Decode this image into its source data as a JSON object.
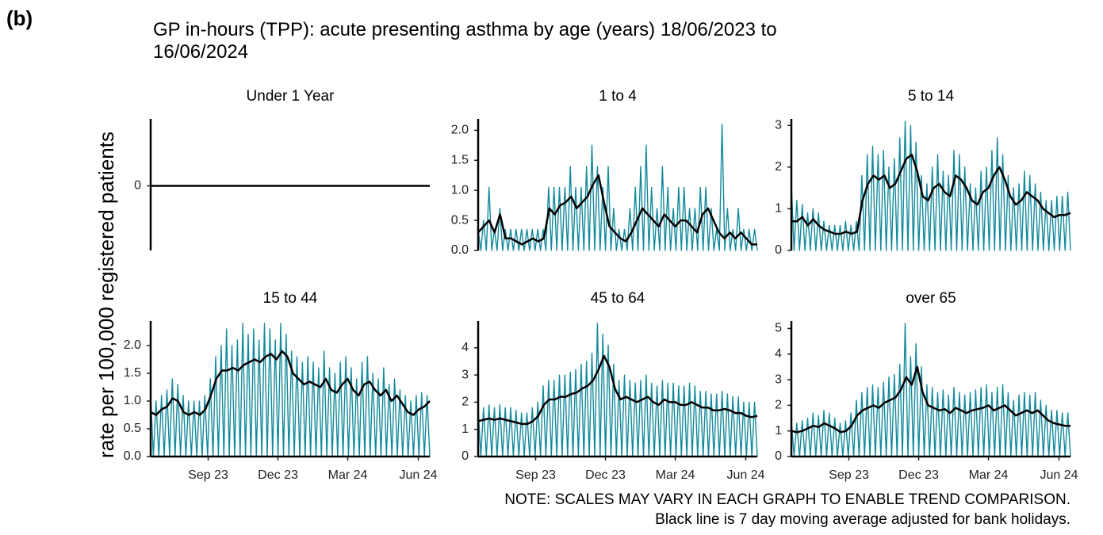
{
  "figure": {
    "label": "(b)",
    "title": "GP in-hours (TPP): acute presenting asthma by age (years) 18/06/2023 to 16/06/2024",
    "ylabel": "rate per 100,000 registered patients",
    "notes": [
      "NOTE: SCALES MAY VARY IN EACH GRAPH TO ENABLE TREND COMPARISON.",
      "Black line is 7 day moving average adjusted for bank holidays."
    ]
  },
  "chart_data": [
    {
      "type": "line",
      "title": "Under 1 Year",
      "xlim": [
        "2023-06-18",
        "2024-06-16"
      ],
      "ylim": [
        -1,
        1
      ],
      "yticks": [
        0
      ],
      "series": [
        {
          "color": "#000000",
          "values": [
            0,
            0
          ]
        }
      ]
    },
    {
      "type": "line",
      "title": "1 to 4",
      "xlim": [
        "2023-06-18",
        "2024-06-16"
      ],
      "ylim": [
        0,
        2.15
      ],
      "yticks": [
        {
          "value": 0,
          "label": "0.0"
        },
        {
          "value": 0.5,
          "label": "0.5"
        },
        {
          "value": 1,
          "label": "1.0"
        },
        {
          "value": 1.5,
          "label": "1.5"
        },
        {
          "value": 2,
          "label": "2.0"
        }
      ],
      "series": [
        {
          "color": "#13899c",
          "values": [
            0.35,
            0,
            0.5,
            0,
            1.05,
            0,
            0.35,
            0,
            0.7,
            0,
            0.35,
            0,
            0.35,
            0,
            0.35,
            0,
            0.35,
            0,
            0.35,
            0,
            0.35,
            0,
            0.35,
            0,
            0.35,
            0,
            1.05,
            0,
            1.05,
            0,
            1.05,
            0,
            1.05,
            0,
            1.4,
            0,
            1.05,
            0,
            1.05,
            0,
            1.4,
            0,
            1.75,
            0,
            1.4,
            0,
            1.05,
            0,
            1.4,
            0,
            0.7,
            0,
            0.35,
            0,
            0.35,
            0,
            0.7,
            0,
            1.05,
            0,
            1.4,
            0,
            1.75,
            0,
            1.05,
            0,
            0.7,
            0,
            1.4,
            0,
            1.05,
            0,
            0.7,
            0,
            1.05,
            0,
            1.05,
            0,
            0.7,
            0,
            0.7,
            0,
            1.05,
            0,
            1.05,
            0,
            0.7,
            0,
            0.35,
            0,
            2.1,
            0,
            0.7,
            0,
            0.35,
            0,
            0.7,
            0,
            0.35,
            0,
            0.35,
            0,
            0.35,
            0
          ]
        },
        {
          "color": "#000000",
          "values": [
            0.3,
            0.4,
            0.5,
            0.3,
            0.6,
            0.2,
            0.2,
            0.15,
            0.1,
            0.15,
            0.2,
            0.15,
            0.2,
            0.7,
            0.6,
            0.75,
            0.8,
            0.9,
            0.7,
            0.8,
            0.9,
            1.1,
            1.25,
            0.8,
            0.4,
            0.3,
            0.2,
            0.15,
            0.3,
            0.5,
            0.7,
            0.6,
            0.5,
            0.4,
            0.6,
            0.5,
            0.4,
            0.5,
            0.5,
            0.4,
            0.3,
            0.6,
            0.7,
            0.5,
            0.3,
            0.2,
            0.3,
            0.2,
            0.3,
            0.2,
            0.1,
            0.1
          ]
        }
      ]
    },
    {
      "type": "line",
      "title": "5 to 14",
      "xlim": [
        "2023-06-18",
        "2024-06-16"
      ],
      "ylim": [
        0,
        3.1
      ],
      "yticks": [
        0,
        1,
        2,
        3
      ],
      "series": [
        {
          "color": "#13899c",
          "values": [
            1.6,
            0,
            1.2,
            0,
            1.1,
            0,
            0.9,
            0,
            1.0,
            0,
            0.9,
            0,
            0.7,
            0,
            0.6,
            0,
            0.6,
            0,
            0.6,
            0,
            0.7,
            0,
            0.6,
            0,
            0.7,
            0,
            1.8,
            0,
            2.3,
            0,
            2.5,
            0,
            2.3,
            0,
            2.4,
            0,
            2.0,
            0,
            2.2,
            0,
            2.7,
            0,
            3.1,
            0,
            3.0,
            0,
            2.6,
            0,
            1.8,
            0,
            1.6,
            0,
            2.0,
            0,
            2.3,
            0,
            1.9,
            0,
            1.8,
            0,
            2.4,
            0,
            2.3,
            0,
            2.0,
            0,
            1.6,
            0,
            1.5,
            0,
            1.9,
            0,
            2.0,
            0,
            2.4,
            0,
            2.7,
            0,
            2.3,
            0,
            1.8,
            0,
            1.5,
            0,
            1.6,
            0,
            1.9,
            0,
            1.8,
            0,
            1.6,
            0,
            1.4,
            0,
            1.2,
            0,
            1.2,
            0,
            1.3,
            0,
            1.3,
            0,
            1.4,
            0
          ]
        },
        {
          "color": "#000000",
          "values": [
            0.7,
            0.7,
            0.8,
            0.6,
            0.75,
            0.6,
            0.5,
            0.45,
            0.4,
            0.4,
            0.45,
            0.4,
            0.45,
            1.2,
            1.6,
            1.8,
            1.7,
            1.8,
            1.5,
            1.6,
            1.9,
            2.2,
            2.3,
            1.9,
            1.3,
            1.2,
            1.5,
            1.6,
            1.4,
            1.3,
            1.8,
            1.7,
            1.5,
            1.2,
            1.1,
            1.4,
            1.5,
            1.8,
            2.0,
            1.7,
            1.3,
            1.1,
            1.2,
            1.4,
            1.3,
            1.2,
            1.0,
            0.9,
            0.8,
            0.85,
            0.85,
            0.9
          ]
        }
      ]
    },
    {
      "type": "line",
      "title": "15 to 44",
      "xlim": [
        "2023-06-18",
        "2024-06-16"
      ],
      "ylim": [
        0,
        2.4
      ],
      "yticks": [
        {
          "value": 0,
          "label": "0.0"
        },
        {
          "value": 0.5,
          "label": "0.5"
        },
        {
          "value": 1,
          "label": "1.0"
        },
        {
          "value": 1.5,
          "label": "1.5"
        },
        {
          "value": 2,
          "label": "2.0"
        }
      ],
      "xticks": [
        {
          "value": "2023-09",
          "label": "Sep 23"
        },
        {
          "value": "2023-12",
          "label": "Dec 23"
        },
        {
          "value": "2024-03",
          "label": "Mar 24"
        },
        {
          "value": "2024-06",
          "label": "Jun 24"
        }
      ],
      "series": [
        {
          "color": "#13899c",
          "values": [
            1.1,
            0,
            1.0,
            0,
            1.1,
            0,
            1.2,
            0,
            1.4,
            0,
            1.3,
            0,
            1.1,
            0,
            1.0,
            0,
            1.0,
            0,
            1.0,
            0,
            1.1,
            0,
            1.4,
            0,
            1.8,
            0,
            2.0,
            0,
            2.3,
            0,
            2.0,
            0,
            2.1,
            0,
            2.4,
            0,
            2.2,
            0,
            2.3,
            0,
            2.1,
            0,
            2.4,
            0,
            2.3,
            0,
            2.1,
            0,
            2.4,
            0,
            2.2,
            0,
            1.9,
            0,
            1.8,
            0,
            1.7,
            0,
            1.8,
            0,
            1.7,
            0,
            1.6,
            0,
            1.9,
            0,
            1.6,
            0,
            1.5,
            0,
            1.7,
            0,
            1.8,
            0,
            1.6,
            0,
            1.4,
            0,
            1.7,
            0,
            1.8,
            0,
            1.5,
            0,
            1.4,
            0,
            1.6,
            0,
            1.3,
            0,
            1.4,
            0,
            1.2,
            0,
            1.1,
            0,
            1.0,
            0,
            1.1,
            0,
            1.15,
            0,
            1.1,
            0
          ]
        },
        {
          "color": "#000000",
          "values": [
            0.8,
            0.75,
            0.85,
            0.9,
            1.05,
            1.0,
            0.8,
            0.75,
            0.8,
            0.75,
            0.85,
            1.1,
            1.4,
            1.55,
            1.55,
            1.6,
            1.55,
            1.65,
            1.7,
            1.75,
            1.7,
            1.8,
            1.85,
            1.75,
            1.9,
            1.8,
            1.5,
            1.4,
            1.3,
            1.35,
            1.3,
            1.25,
            1.4,
            1.2,
            1.15,
            1.3,
            1.4,
            1.2,
            1.1,
            1.3,
            1.35,
            1.2,
            1.1,
            1.2,
            1.0,
            1.1,
            0.95,
            0.8,
            0.75,
            0.85,
            0.9,
            1.0
          ]
        }
      ]
    },
    {
      "type": "line",
      "title": "45 to 64",
      "xlim": [
        "2023-06-18",
        "2024-06-16"
      ],
      "ylim": [
        0,
        4.9
      ],
      "yticks": [
        0,
        1,
        2,
        3,
        4
      ],
      "xticks": [
        {
          "value": "2023-09",
          "label": "Sep 23"
        },
        {
          "value": "2023-12",
          "label": "Dec 23"
        },
        {
          "value": "2024-03",
          "label": "Mar 24"
        },
        {
          "value": "2024-06",
          "label": "Jun 24"
        }
      ],
      "series": [
        {
          "color": "#13899c",
          "values": [
            1.8,
            0,
            1.8,
            0,
            1.9,
            0,
            1.8,
            0,
            1.9,
            0,
            1.8,
            0,
            1.8,
            0,
            1.7,
            0,
            1.6,
            0,
            1.6,
            0,
            1.8,
            0,
            2.0,
            0,
            2.6,
            0,
            2.8,
            0,
            2.8,
            0,
            3.0,
            0,
            3.0,
            0,
            3.1,
            0,
            3.2,
            0,
            3.4,
            0,
            3.5,
            0,
            3.8,
            0,
            4.9,
            0,
            4.5,
            0,
            4.1,
            0,
            3.4,
            0,
            2.8,
            0,
            3.0,
            0,
            2.8,
            0,
            2.7,
            0,
            2.8,
            0,
            3.0,
            0,
            2.7,
            0,
            2.6,
            0,
            2.8,
            0,
            2.7,
            0,
            2.7,
            0,
            2.6,
            0,
            2.6,
            0,
            2.7,
            0,
            2.6,
            0,
            2.4,
            0,
            2.4,
            0,
            2.3,
            0,
            2.3,
            0,
            2.4,
            0,
            2.3,
            0,
            2.2,
            0,
            2.2,
            0,
            2.0,
            0,
            2.0,
            0,
            2.0,
            0
          ]
        },
        {
          "color": "#000000",
          "values": [
            1.3,
            1.35,
            1.4,
            1.35,
            1.4,
            1.35,
            1.3,
            1.25,
            1.2,
            1.2,
            1.3,
            1.5,
            1.9,
            2.1,
            2.1,
            2.2,
            2.2,
            2.3,
            2.35,
            2.5,
            2.6,
            2.8,
            3.2,
            3.7,
            3.3,
            2.5,
            2.1,
            2.2,
            2.1,
            2.0,
            2.1,
            2.2,
            2.0,
            1.9,
            2.1,
            2.0,
            2.0,
            1.9,
            1.9,
            2.0,
            1.9,
            1.8,
            1.8,
            1.7,
            1.7,
            1.75,
            1.7,
            1.6,
            1.6,
            1.5,
            1.45,
            1.5
          ]
        }
      ]
    },
    {
      "type": "line",
      "title": "over 65",
      "xlim": [
        "2023-06-18",
        "2024-06-16"
      ],
      "ylim": [
        0,
        5.2
      ],
      "yticks": [
        0,
        1,
        2,
        3,
        4,
        5
      ],
      "xticks": [
        {
          "value": "2023-09",
          "label": "Sep 23"
        },
        {
          "value": "2023-12",
          "label": "Dec 23"
        },
        {
          "value": "2024-03",
          "label": "Mar 24"
        },
        {
          "value": "2024-06",
          "label": "Jun 24"
        }
      ],
      "series": [
        {
          "color": "#13899c",
          "values": [
            1.4,
            0,
            1.3,
            0,
            1.4,
            0,
            1.5,
            0,
            1.7,
            0,
            1.6,
            0,
            1.8,
            0,
            1.7,
            0,
            1.5,
            0,
            1.3,
            0,
            1.4,
            0,
            1.7,
            0,
            2.2,
            0,
            2.5,
            0,
            2.7,
            0,
            2.8,
            0,
            2.7,
            0,
            2.9,
            0,
            3.1,
            0,
            3.2,
            0,
            3.6,
            0,
            5.2,
            0,
            3.9,
            0,
            4.4,
            0,
            3.5,
            0,
            2.8,
            0,
            2.7,
            0,
            2.5,
            0,
            2.6,
            0,
            2.4,
            0,
            2.7,
            0,
            2.5,
            0,
            2.4,
            0,
            2.5,
            0,
            2.6,
            0,
            2.7,
            0,
            2.8,
            0,
            2.5,
            0,
            2.7,
            0,
            2.8,
            0,
            2.5,
            0,
            2.2,
            0,
            2.4,
            0,
            2.5,
            0,
            2.4,
            0,
            2.5,
            0,
            2.2,
            0,
            2.0,
            0,
            1.8,
            0,
            1.8,
            0,
            1.7,
            0,
            1.7,
            0
          ]
        },
        {
          "color": "#000000",
          "values": [
            1.0,
            0.95,
            1.0,
            1.1,
            1.2,
            1.15,
            1.3,
            1.2,
            1.1,
            0.95,
            1.0,
            1.2,
            1.6,
            1.8,
            1.9,
            2.0,
            1.9,
            2.1,
            2.2,
            2.3,
            2.6,
            3.1,
            2.8,
            3.5,
            2.5,
            2.0,
            1.9,
            1.8,
            1.85,
            1.7,
            1.9,
            1.8,
            1.7,
            1.8,
            1.85,
            1.9,
            2.0,
            1.8,
            1.9,
            2.0,
            1.8,
            1.6,
            1.7,
            1.8,
            1.7,
            1.8,
            1.6,
            1.4,
            1.3,
            1.25,
            1.2,
            1.2
          ]
        }
      ]
    }
  ]
}
